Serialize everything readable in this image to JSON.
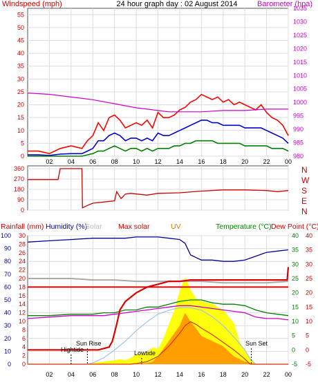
{
  "chart_data": [
    {
      "type": "line",
      "title": "24 hour graph day : 02 August 2014",
      "left_label": "Windspeed (mph)",
      "right_label": "Barometer (hpa)",
      "x_ticks": [
        "02",
        "04",
        "06",
        "08",
        "10",
        "12",
        "14",
        "16",
        "18",
        "20",
        "22",
        "00"
      ],
      "y_ticks_left": [
        0,
        5,
        10,
        15,
        20,
        25,
        30,
        35,
        40,
        45,
        50,
        55
      ],
      "y_ticks_right": [
        980,
        985,
        990,
        995,
        1000,
        1005,
        1010,
        1015,
        1020,
        1025,
        1030,
        1035
      ],
      "ylim_left": [
        0,
        57.5
      ],
      "ylim_right": [
        980,
        1035
      ],
      "xlim_hours": [
        0,
        24
      ],
      "colors": {
        "gust": "#ff0000",
        "average": "#0000cc",
        "speed": "#008000",
        "barometer": "#cc00cc"
      },
      "series": [
        {
          "role": "gust",
          "hours": [
            0,
            1,
            2,
            3,
            4,
            5,
            5.5,
            6,
            6.5,
            7,
            7.5,
            8,
            8.5,
            9,
            9.5,
            10,
            10.5,
            11,
            11.5,
            12,
            12.5,
            13,
            13.5,
            14,
            14.5,
            15,
            15.5,
            16,
            16.5,
            17,
            17.5,
            18,
            18.5,
            19,
            19.5,
            20,
            20.5,
            21,
            21.5,
            22,
            22.5,
            23,
            23.5,
            24
          ],
          "values": [
            2,
            2,
            1,
            3,
            4,
            3,
            6,
            8,
            13,
            10,
            15,
            16,
            14,
            11,
            12,
            13,
            12,
            14,
            11,
            17,
            15,
            15,
            16,
            18,
            19,
            21,
            22,
            24,
            23,
            22,
            23,
            21,
            22,
            20,
            21,
            20,
            19,
            18,
            20,
            17,
            15,
            14,
            12,
            8
          ]
        },
        {
          "role": "average",
          "hours": [
            0,
            1,
            2,
            3,
            4,
            5,
            5.5,
            6,
            6.5,
            7,
            7.5,
            8,
            8.5,
            9,
            9.5,
            10,
            10.5,
            11,
            11.5,
            12,
            12.5,
            13,
            13.5,
            14,
            14.5,
            15,
            15.5,
            16,
            16.5,
            17,
            17.5,
            18,
            18.5,
            19,
            19.5,
            20,
            20.5,
            21,
            21.5,
            22,
            22.5,
            23,
            23.5,
            24
          ],
          "values": [
            0.5,
            0.5,
            0.3,
            0.8,
            1,
            1,
            2,
            3,
            6,
            6,
            8,
            9,
            8,
            6,
            7,
            7,
            6,
            7,
            6,
            9,
            8,
            8,
            9,
            10,
            11,
            12,
            13,
            14,
            14,
            13,
            13,
            12,
            12,
            12,
            12,
            11,
            11,
            11,
            11,
            10,
            9,
            8,
            7,
            5
          ]
        },
        {
          "role": "speed",
          "hours": [
            0,
            1,
            2,
            3,
            4,
            5,
            5.5,
            6,
            6.5,
            7,
            7.5,
            8,
            8.5,
            9,
            9.5,
            10,
            10.5,
            11,
            11.5,
            12,
            12.5,
            13,
            13.5,
            14,
            14.5,
            15,
            15.5,
            16,
            16.5,
            17,
            17.5,
            18,
            18.5,
            19,
            19.5,
            20,
            20.5,
            21,
            21.5,
            22,
            22.5,
            23,
            23.5,
            24
          ],
          "values": [
            0,
            0,
            0,
            0,
            0,
            0,
            0.5,
            1,
            2,
            2,
            3,
            4,
            3,
            2,
            3,
            3,
            2,
            3,
            2,
            3,
            3,
            3,
            4,
            4,
            5,
            5,
            6,
            6,
            6,
            6,
            5,
            5,
            5,
            5,
            5,
            4,
            4,
            4,
            4,
            4,
            3,
            3,
            3,
            2
          ]
        },
        {
          "role": "barometer",
          "hours": [
            0,
            2,
            4,
            6,
            8,
            10,
            11,
            12,
            13,
            14,
            16,
            18,
            20,
            22,
            24
          ],
          "values": [
            1003.5,
            1003,
            1002,
            1001,
            999.5,
            998,
            997.5,
            997,
            996.5,
            996.5,
            996.5,
            997,
            997,
            997.5,
            997.5
          ]
        }
      ]
    },
    {
      "type": "line",
      "title": "",
      "y_ticks": [
        0,
        90,
        180,
        270,
        360
      ],
      "compass_labels": [
        "N",
        "W",
        "S",
        "E",
        "N"
      ],
      "ylim": [
        0,
        360
      ],
      "xlim_hours": [
        0,
        24
      ],
      "colors": {
        "direction": "#cc0000",
        "compass": "#cc0000"
      },
      "series": [
        {
          "role": "direction",
          "hours": [
            0,
            2,
            2.8,
            3,
            4,
            5,
            5.05,
            5.5,
            6,
            7,
            8,
            8.2,
            8.6,
            9,
            9.5,
            10,
            11,
            12,
            14,
            16,
            18,
            20,
            22,
            23,
            24
          ],
          "values": [
            265,
            265,
            265,
            360,
            360,
            360,
            20,
            40,
            60,
            70,
            80,
            160,
            100,
            140,
            145,
            140,
            130,
            145,
            150,
            165,
            175,
            175,
            170,
            160,
            170
          ]
        }
      ]
    },
    {
      "type": "line",
      "title": "",
      "header_labels": {
        "rainfall": "Rainfall (mm)",
        "humidity": "Humidity (%)",
        "solar": "Solar",
        "max_solar": "Max solar",
        "uv": "UV",
        "temperature": "Temperature (°C)",
        "dew_point": "Dew Point (°C)"
      },
      "x_ticks": [
        "02",
        "04",
        "06",
        "08",
        "10",
        "12",
        "14",
        "16",
        "18",
        "20",
        "22",
        "00"
      ],
      "y_ticks_rain": [
        0,
        2,
        4,
        6,
        8,
        10,
        12,
        14,
        16,
        18,
        20,
        22,
        24,
        26,
        28,
        30
      ],
      "y_ticks_humidity": [
        0,
        10,
        20,
        30,
        40,
        50,
        60,
        70,
        80,
        90,
        100
      ],
      "y_ticks_temperature": [
        -5,
        0,
        5,
        10,
        15,
        20,
        25,
        30,
        35,
        40
      ],
      "ylim_humidity": [
        0,
        100
      ],
      "ylim_temperature": [
        -5,
        40
      ],
      "xlim_hours": [
        0,
        24
      ],
      "annotations": [
        "Hightide",
        "Sun Rise",
        "Lowtide",
        "Sun Set"
      ],
      "colors": {
        "humidity": "#000099",
        "rain": "#dd0000",
        "rain_total": "#dd0000",
        "solar": "#ffff00",
        "max_solar": "#a0c4e8",
        "uv": "#ff9900",
        "uv_line": "#dd3300",
        "temperature": "#008000",
        "dew_point": "#cc00cc",
        "grey": "#aaaaaa",
        "axis_rain": "#cc0000",
        "axis_humidity": "#000099",
        "axis_temperature": "#008000",
        "axis_dew": "#cc0000"
      },
      "series": [
        {
          "role": "humidity",
          "hours": [
            0,
            2,
            4,
            6,
            8,
            9,
            10,
            11,
            12,
            13,
            14,
            14.5,
            15,
            16,
            17,
            18,
            19,
            20,
            21,
            22,
            23,
            24
          ],
          "values": [
            95,
            96,
            97,
            98,
            98,
            98,
            99,
            99,
            99,
            98,
            97,
            94,
            85,
            81,
            81,
            80,
            80,
            81,
            84,
            87,
            88,
            89
          ]
        },
        {
          "role": "rain_total",
          "hours": [
            0,
            5,
            6.5,
            7,
            7.5,
            7.8,
            8,
            8.2,
            8.5,
            9,
            10,
            11,
            12,
            13,
            14,
            15,
            16,
            17,
            18,
            19,
            20,
            23.9,
            24
          ],
          "values": [
            0,
            0,
            0,
            0.5,
            1,
            3,
            6,
            9,
            14,
            17,
            20,
            22,
            23,
            24,
            24,
            24.5,
            24.5,
            24.5,
            24.5,
            24.5,
            24.5,
            24.5,
            29
          ]
        },
        {
          "role": "rain_rate",
          "hours": [
            0,
            24
          ],
          "values": [
            22,
            22
          ]
        },
        {
          "role": "grey",
          "hours": [
            0,
            2,
            4,
            6,
            8,
            10,
            12,
            14,
            16,
            18,
            20,
            22,
            24
          ],
          "values": [
            25,
            25,
            25,
            24.5,
            24.5,
            24,
            24,
            24,
            24,
            23.5,
            23.5,
            23.5,
            24
          ]
        },
        {
          "role": "temperature",
          "hours": [
            0,
            2,
            4,
            6,
            7,
            8,
            9,
            10,
            11,
            12,
            13,
            14,
            15,
            16,
            17,
            18,
            19,
            20,
            21,
            22,
            23,
            24
          ],
          "values": [
            12,
            12,
            12.5,
            12.5,
            13,
            13,
            14,
            14,
            15,
            15,
            16,
            17,
            17.5,
            17.5,
            16.5,
            16,
            16,
            15.5,
            14,
            13,
            12.5,
            12
          ]
        },
        {
          "role": "dew_point",
          "hours": [
            0,
            2,
            4,
            6,
            7,
            8,
            9,
            10,
            11,
            12,
            13,
            14,
            15,
            16,
            17,
            18,
            19,
            20,
            21,
            22,
            23,
            24
          ],
          "values": [
            11,
            11.5,
            12,
            12,
            12,
            12.5,
            13,
            13.5,
            14,
            14.5,
            15,
            15.5,
            15.5,
            15,
            14.5,
            14,
            13.5,
            13,
            11.5,
            11,
            11,
            10.5
          ]
        },
        {
          "role": "max_solar",
          "hours": [
            0,
            5.5,
            6,
            7,
            8,
            9,
            10,
            11,
            12,
            13,
            14,
            15,
            16,
            17,
            18,
            19,
            20,
            20.5,
            21,
            24
          ],
          "values": [
            0,
            0,
            1,
            5,
            11,
            18,
            26,
            33,
            39,
            42,
            44,
            44,
            42,
            37,
            30,
            21,
            11,
            4,
            0,
            0
          ]
        },
        {
          "role": "solar",
          "hours": [
            0,
            5.8,
            6,
            7,
            8,
            8.5,
            9,
            9.5,
            10,
            11,
            11.5,
            12,
            12.5,
            13,
            13.5,
            14,
            14.5,
            15,
            15.5,
            16,
            17,
            18,
            19,
            19.5,
            20,
            21,
            24
          ],
          "values": [
            0,
            0,
            1,
            2,
            3,
            4,
            3,
            5,
            8,
            9,
            13,
            12,
            20,
            31,
            42,
            57,
            68,
            58,
            51,
            49,
            47,
            42,
            32,
            18,
            10,
            0,
            0
          ]
        },
        {
          "role": "uv",
          "hours": [
            0,
            9,
            10,
            11,
            11.5,
            12,
            13,
            14,
            14.5,
            15,
            15.5,
            16,
            17,
            18,
            18.5,
            19,
            20,
            21,
            24
          ],
          "values": [
            0,
            0,
            0.5,
            1,
            2,
            6,
            18,
            30,
            40,
            33,
            28,
            22,
            18,
            14,
            10,
            6,
            2,
            0,
            0
          ]
        },
        {
          "role": "uv_line",
          "hours": [
            0,
            9.5,
            10,
            11,
            12,
            13,
            14,
            14.5,
            15,
            15.5,
            16,
            17,
            18,
            19,
            20,
            20.5,
            24
          ],
          "values": [
            0,
            0,
            0.5,
            2,
            6,
            14,
            24,
            30,
            33,
            31,
            28,
            23,
            17,
            11,
            4,
            0,
            0
          ]
        }
      ]
    }
  ]
}
